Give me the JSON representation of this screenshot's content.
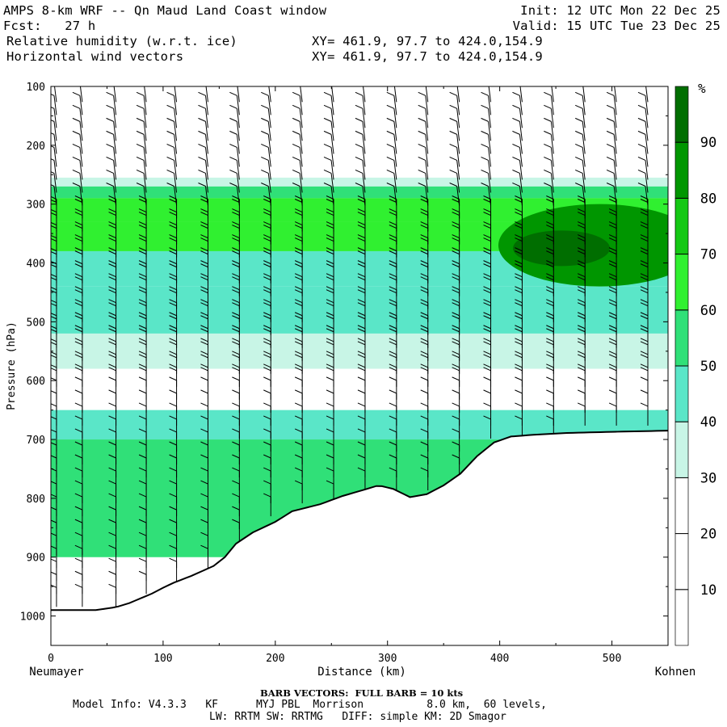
{
  "header": {
    "title": "AMPS 8-km WRF -- Qn Maud Land Coast window",
    "init": "Init: 12 UTC Mon 22 Dec 25",
    "forecast": "Fcst:   27 h",
    "valid": "Valid: 15 UTC Tue 23 Dec 25",
    "field1": "Relative humidity (w.r.t. ice)",
    "field1_xy": "XY= 461.9, 97.7 to 424.0,154.9",
    "field2": "Horizontal wind vectors",
    "field2_xy": "XY= 461.9, 97.7 to 424.0,154.9"
  },
  "chart_data": {
    "type": "heatmap",
    "title": "Relative humidity (w.r.t. ice) and horizontal wind vectors cross-section",
    "xlabel": "Distance (km)",
    "ylabel": "Pressure (hPa)",
    "xlim": [
      0,
      550
    ],
    "ylim": [
      1050,
      100
    ],
    "x_ticks": [
      0,
      100,
      200,
      300,
      400,
      500
    ],
    "y_ticks": [
      100,
      200,
      300,
      400,
      500,
      600,
      700,
      800,
      900,
      1000
    ],
    "left_endpoint": "Neumayer",
    "right_endpoint": "Kohnen",
    "colorbar": {
      "unit": "%",
      "levels": [
        10,
        20,
        30,
        40,
        50,
        60,
        70,
        80,
        90
      ],
      "colors": [
        "#ffffff",
        "#ffffff",
        "#ffffff",
        "#c8f5e6",
        "#5ae6c8",
        "#30e078",
        "#30f030",
        "#14c814",
        "#009600",
        "#006e00"
      ]
    },
    "terrain_profile": {
      "distance_km": [
        0,
        12,
        20,
        40,
        58,
        70,
        90,
        100,
        110,
        125,
        145,
        155,
        165,
        180,
        200,
        215,
        240,
        260,
        280,
        292,
        305,
        320,
        335,
        350,
        365,
        380,
        395,
        410,
        430,
        460,
        500,
        550
      ],
      "pressure_hPa": [
        990,
        990,
        990,
        990,
        985,
        978,
        962,
        952,
        943,
        932,
        915,
        900,
        877,
        858,
        840,
        822,
        810,
        796,
        785,
        778,
        784,
        798,
        793,
        778,
        758,
        728,
        705,
        695,
        692,
        689,
        687,
        685
      ]
    },
    "rh_bands_by_pressure_hPa": [
      {
        "p_top": 100,
        "p_bottom": 255,
        "rh": 10
      },
      {
        "p_top": 255,
        "p_bottom": 270,
        "rh": 35
      },
      {
        "p_top": 270,
        "p_bottom": 290,
        "rh": 50
      },
      {
        "p_top": 290,
        "p_bottom": 330,
        "rh": 65
      },
      {
        "p_top": 330,
        "p_bottom": 380,
        "rh": 60
      },
      {
        "p_top": 380,
        "p_bottom": 440,
        "rh": 45
      },
      {
        "p_top": 440,
        "p_bottom": 520,
        "rh": 40
      },
      {
        "p_top": 520,
        "p_bottom": 580,
        "rh": 35
      },
      {
        "p_top": 580,
        "p_bottom": 650,
        "rh": 20
      },
      {
        "p_top": 650,
        "p_bottom": 700,
        "rh": 45
      },
      {
        "p_top": 700,
        "p_bottom": 900,
        "rh": 55
      }
    ],
    "moist_core": {
      "distance_km": [
        370,
        550
      ],
      "pressure_hPa": [
        300,
        440
      ],
      "rh_max": 85
    },
    "wind_barb_columns_km": [
      5,
      28,
      58,
      85,
      112,
      140,
      168,
      196,
      224,
      252,
      280,
      308,
      336,
      364,
      392,
      420,
      448,
      476,
      504,
      532
    ]
  },
  "footer": {
    "barb_legend": "BARB VECTORS:  FULL BARB = 10 kts",
    "model_info": "Model Info: V4.3.3   KF      MYJ PBL  Morrison          8.0 km,  60 levels,",
    "physics": "LW: RRTM SW: RRTMG   DIFF: simple KM: 2D Smagor"
  }
}
